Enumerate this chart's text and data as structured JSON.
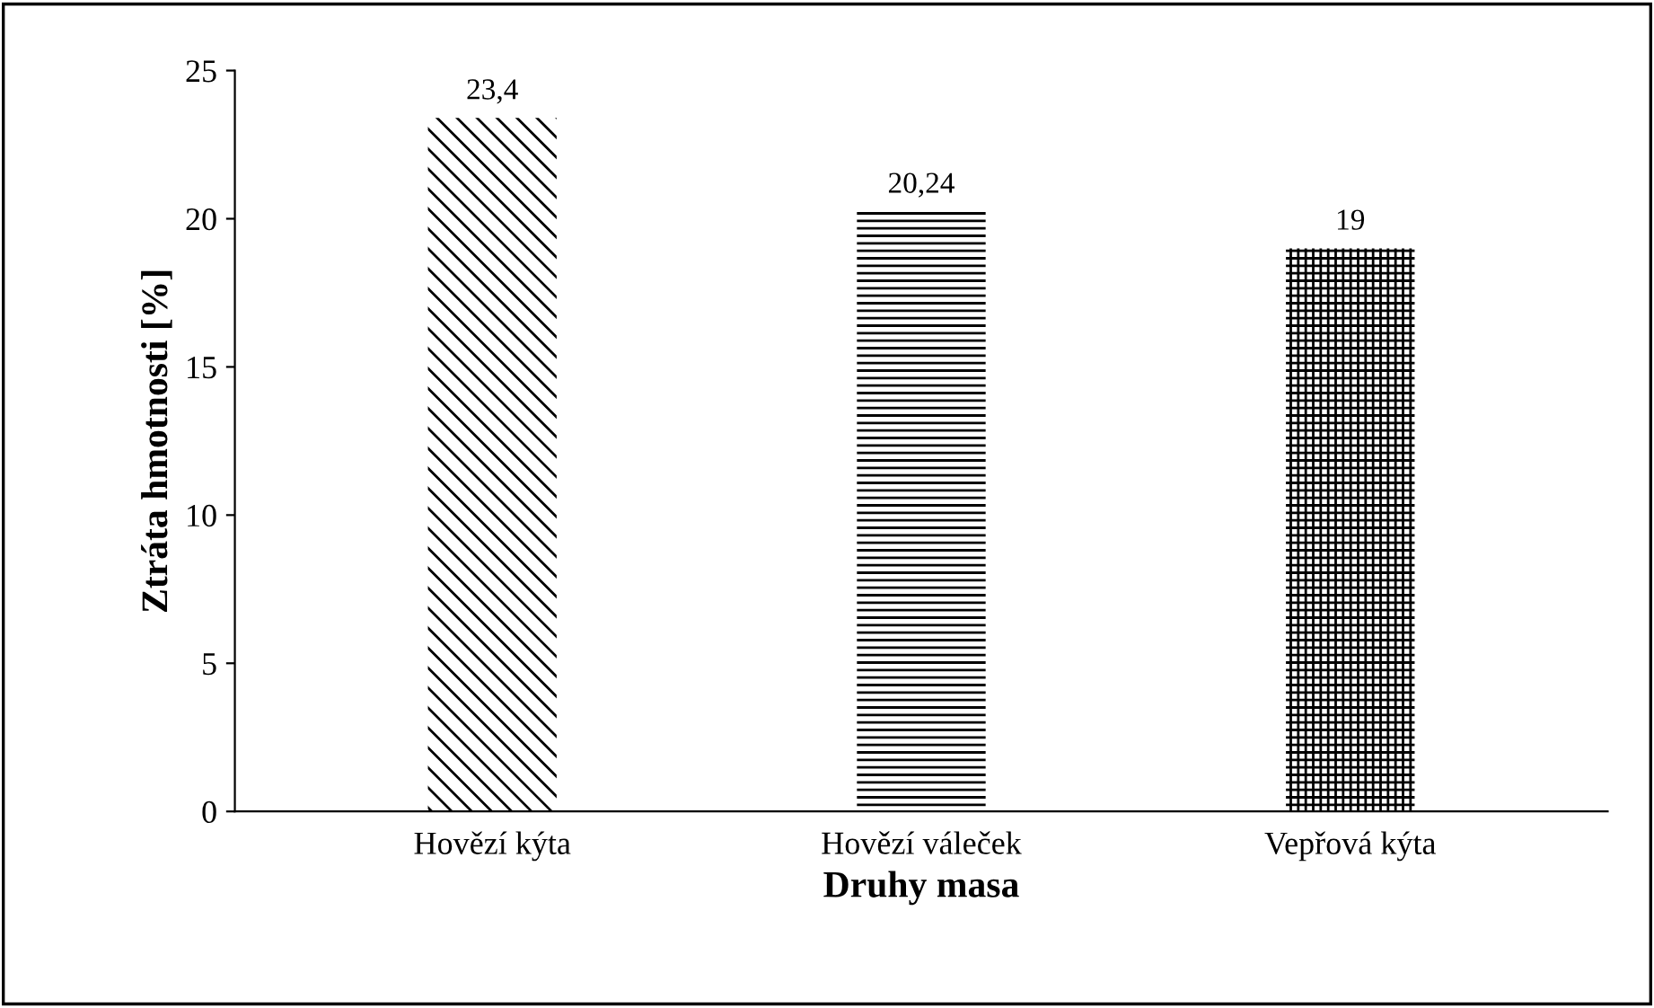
{
  "chart_data": {
    "type": "bar",
    "xlabel": "Druhy masa",
    "ylabel": "Ztráta hmotnosti [%]",
    "categories": [
      "Hovězí kýta",
      "Hovězí váleček",
      "Vepřová kýta"
    ],
    "values": [
      23.4,
      20.24,
      19
    ],
    "value_labels": [
      "23,4",
      "20,24",
      "19"
    ],
    "color": "#000000",
    "ylim": [
      0,
      25
    ],
    "yticks": [
      0,
      5,
      10,
      15,
      20,
      25
    ],
    "grid": false,
    "legend": false
  }
}
